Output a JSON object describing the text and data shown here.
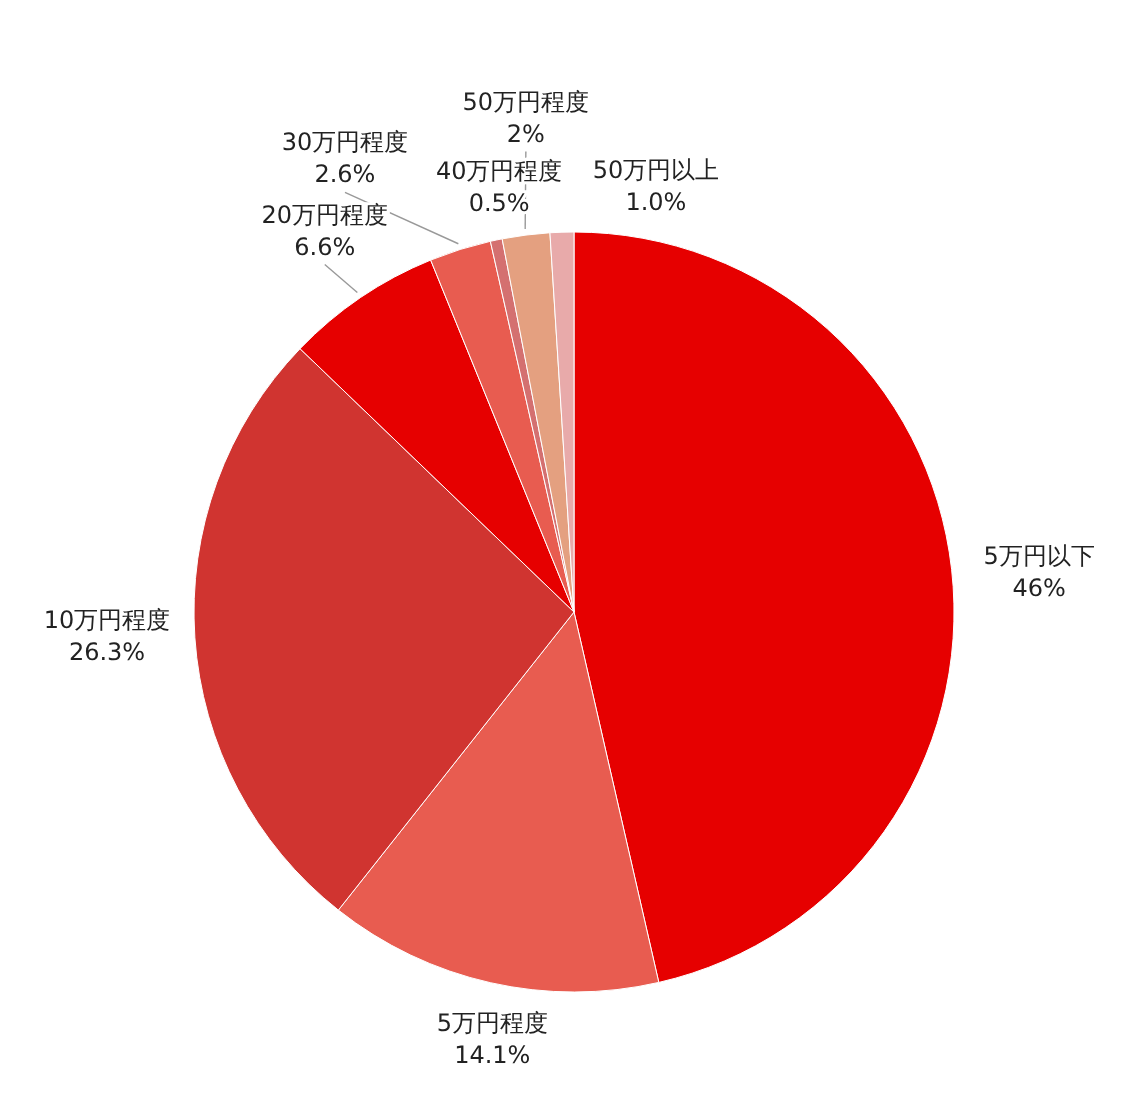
{
  "chart_data": {
    "type": "pie",
    "categories": [
      "5万円以下",
      "5万円程度",
      "10万円程度",
      "20万円程度",
      "30万円程度",
      "40万円程度",
      "50万円程度",
      "50万円以上"
    ],
    "values": [
      46,
      14.1,
      26.3,
      6.6,
      2.6,
      0.5,
      2,
      1.0
    ],
    "value_labels": [
      "46%",
      "14.1%",
      "26.3%",
      "6.6%",
      "2.6%",
      "0.5%",
      "2%",
      "1.0%"
    ],
    "colors": [
      "#e60000",
      "#e85c50",
      "#d03430",
      "#e60000",
      "#e85c50",
      "#d47070",
      "#e4a080",
      "#e8aaaa"
    ],
    "legend": false
  }
}
